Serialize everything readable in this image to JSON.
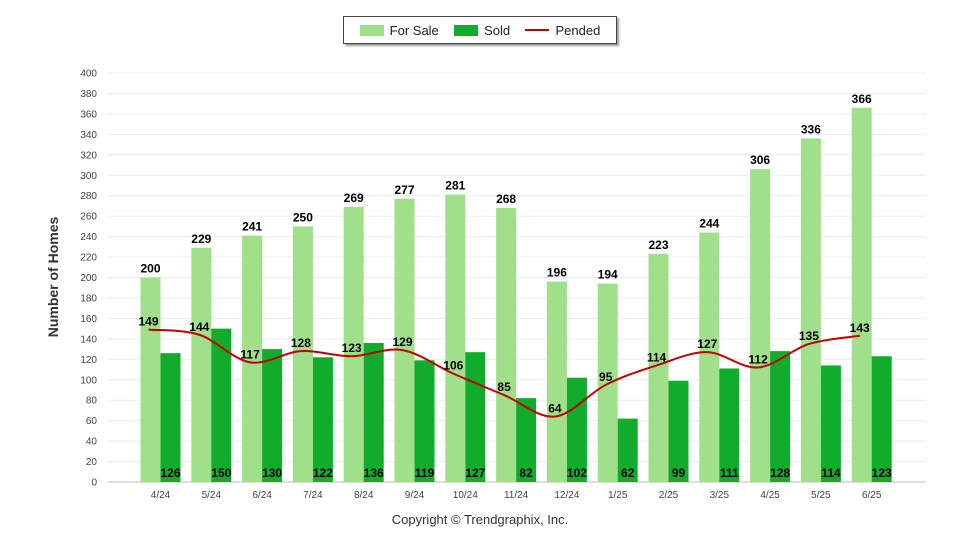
{
  "chart_data": {
    "type": "bar",
    "categories": [
      "4/24",
      "5/24",
      "6/24",
      "7/24",
      "8/24",
      "9/24",
      "10/24",
      "11/24",
      "12/24",
      "1/25",
      "2/25",
      "3/25",
      "4/25",
      "5/25",
      "6/25"
    ],
    "series": [
      {
        "name": "For Sale",
        "type": "bar",
        "color": "#a1e08b",
        "values": [
          200,
          229,
          241,
          250,
          269,
          277,
          281,
          268,
          196,
          194,
          223,
          244,
          306,
          336,
          366
        ]
      },
      {
        "name": "Sold",
        "type": "bar",
        "color": "#12ac2c",
        "values": [
          126,
          150,
          130,
          122,
          136,
          119,
          127,
          82,
          102,
          62,
          99,
          111,
          128,
          114,
          123
        ]
      },
      {
        "name": "Pended",
        "type": "line",
        "color": "#c00000",
        "values": [
          149,
          144,
          117,
          128,
          123,
          129,
          106,
          85,
          64,
          95,
          114,
          127,
          112,
          135,
          143
        ]
      }
    ],
    "ylabel": "Number of Homes",
    "xlabel": "",
    "ylim": [
      0,
      400
    ],
    "ytick_step": 20,
    "grid": true,
    "legend_position": "top-center"
  },
  "footer": {
    "copyright": "Copyright © Trendgraphix, Inc."
  }
}
